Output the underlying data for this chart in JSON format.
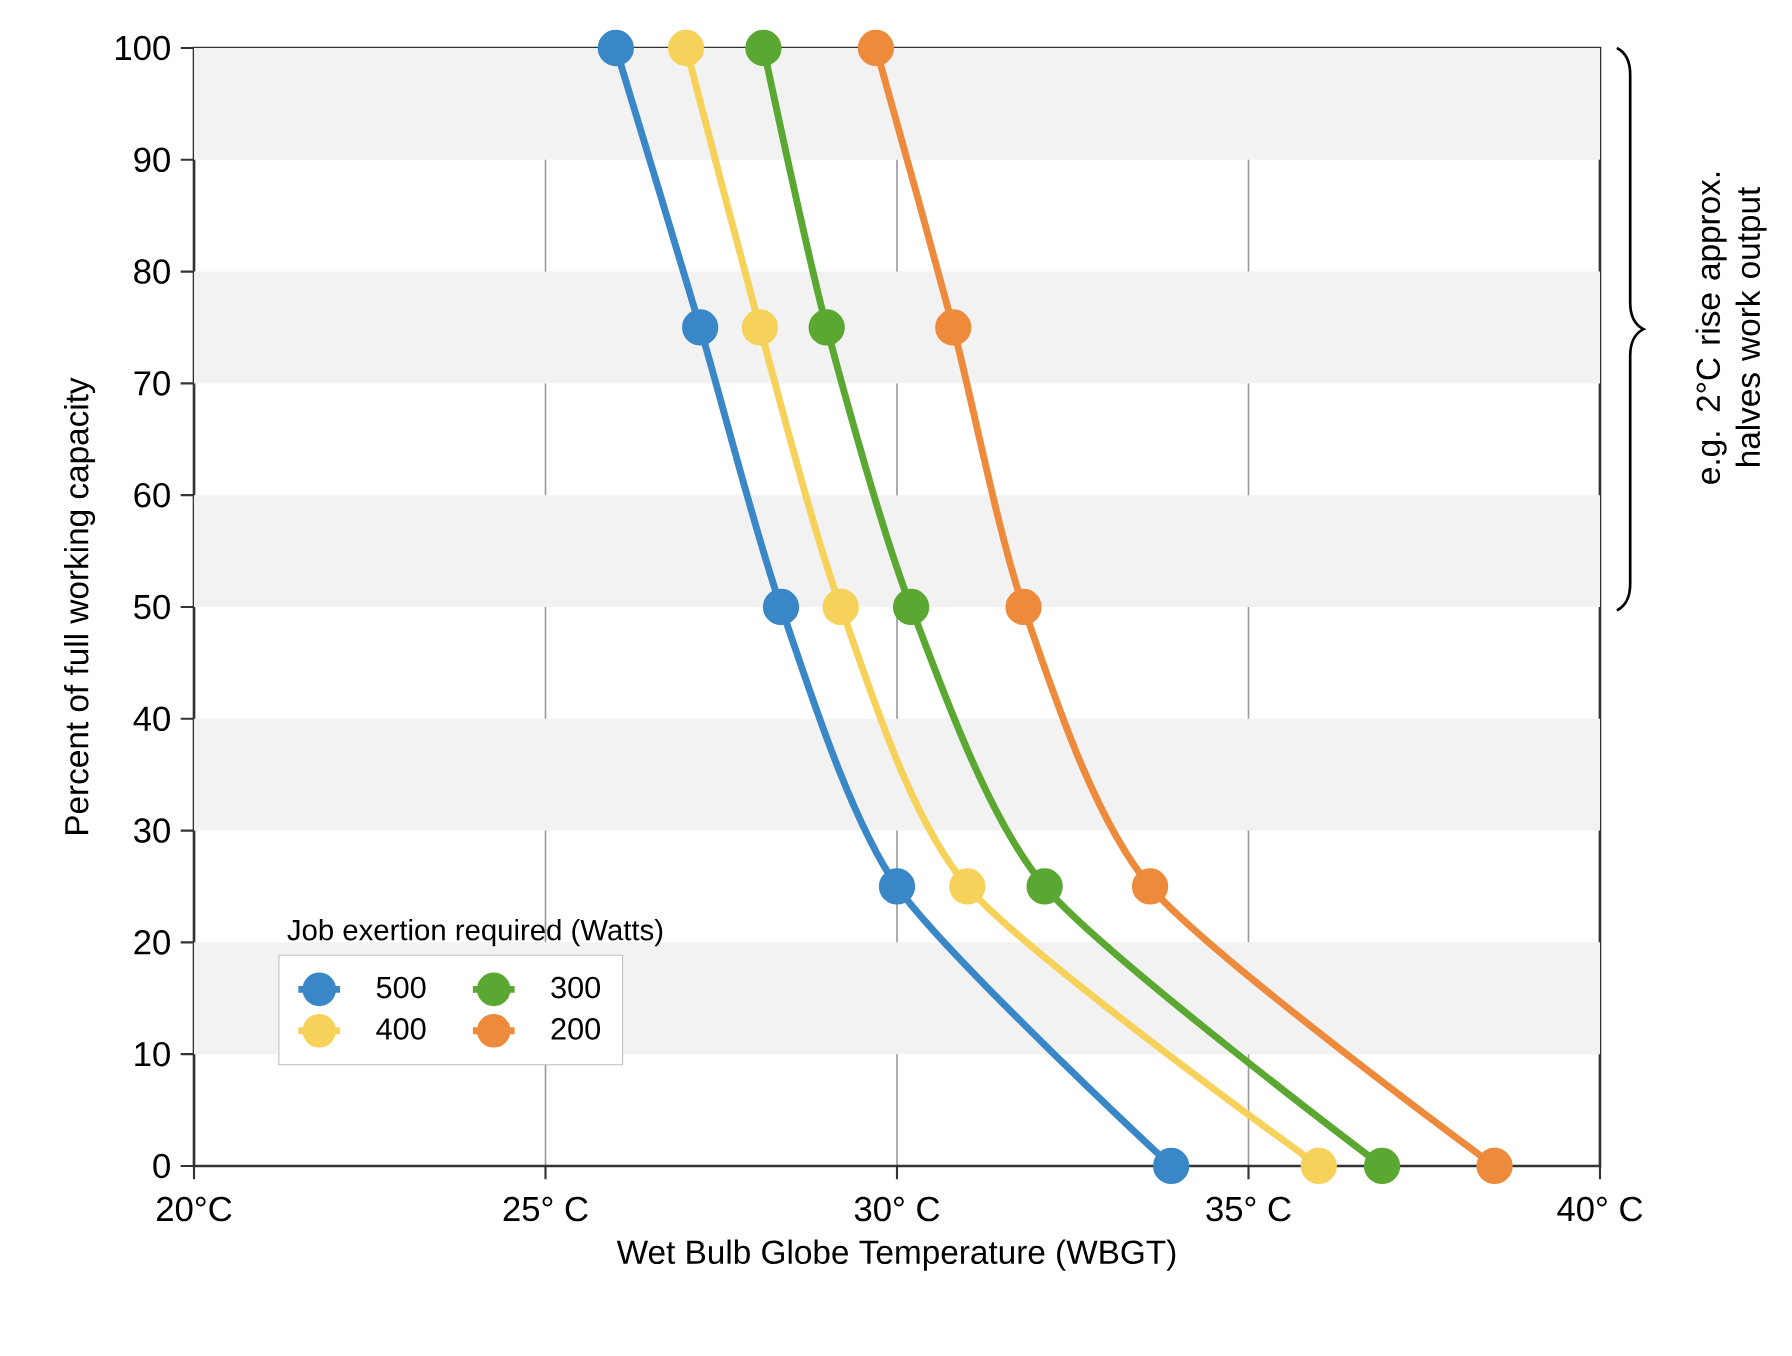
{
  "chart_data": {
    "type": "line",
    "xlabel": "Wet Bulb Globe Temperature (WBGT)",
    "ylabel": "Percent of full working capacity",
    "legend_title": "Job exertion required (Watts)",
    "legend": "bottom left",
    "marker": "circle",
    "line_style": "solid",
    "grid": "x",
    "xlim": [
      20,
      40
    ],
    "ylim": [
      0,
      100
    ],
    "xticks": [
      {
        "value": 20,
        "label": "20°C"
      },
      {
        "value": 25,
        "label": "25° C"
      },
      {
        "value": 30,
        "label": "30° C"
      },
      {
        "value": 35,
        "label": "35° C"
      },
      {
        "value": 40,
        "label": "40° C"
      }
    ],
    "yticks": [
      0,
      10,
      20,
      30,
      40,
      50,
      60,
      70,
      80,
      90,
      100
    ],
    "bands": [
      {
        "axis": "y",
        "from": 10,
        "to": 20,
        "color": "#f2f2f2"
      },
      {
        "axis": "y",
        "from": 30,
        "to": 40,
        "color": "#f2f2f2"
      },
      {
        "axis": "y",
        "from": 50,
        "to": 60,
        "color": "#f2f2f2"
      },
      {
        "axis": "y",
        "from": 70,
        "to": 80,
        "color": "#f2f2f2"
      },
      {
        "axis": "y",
        "from": 90,
        "to": 100,
        "color": "#f2f2f2"
      }
    ],
    "series": [
      {
        "name": "500",
        "color": "#3a87c8",
        "x": [
          26.0,
          27.2,
          28.35,
          30.0,
          33.9
        ],
        "values": [
          100,
          75,
          50,
          25,
          0
        ]
      },
      {
        "name": "400",
        "color": "#f7d25a",
        "x": [
          27.0,
          28.05,
          29.2,
          31.0,
          36.0
        ],
        "values": [
          100,
          75,
          50,
          25,
          0
        ]
      },
      {
        "name": "300",
        "color": "#5aa832",
        "x": [
          28.1,
          29.0,
          30.2,
          32.1,
          36.9
        ],
        "values": [
          100,
          75,
          50,
          25,
          0
        ]
      },
      {
        "name": "200",
        "color": "#ee8a3c",
        "x": [
          29.7,
          30.8,
          31.8,
          33.6,
          38.5
        ],
        "values": [
          100,
          75,
          50,
          25,
          0
        ]
      }
    ],
    "annotations": [
      "e.g. 2°C rise approx. halves work output"
    ]
  }
}
